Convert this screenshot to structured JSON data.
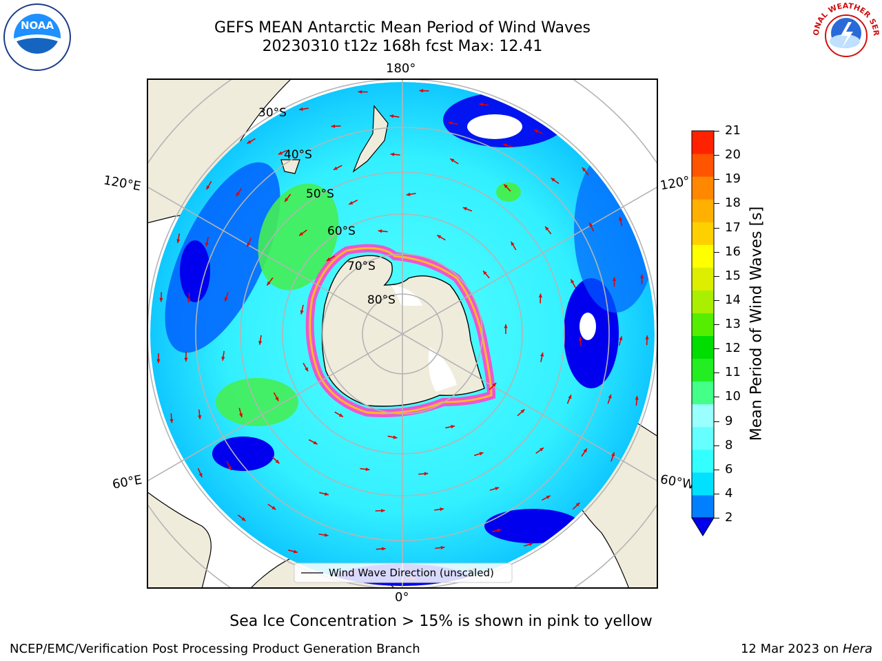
{
  "title": {
    "line1": "GEFS MEAN Antarctic Mean Period of Wind Waves",
    "line2": "20230310 t12z 168h fcst   Max: 12.41"
  },
  "logos": {
    "left": "NOAA",
    "right": "NATIONAL WEATHER SERVICE"
  },
  "map": {
    "longitude_labels": [
      "180°",
      "120°E",
      "120°",
      "60°E",
      "60°W",
      "0°"
    ],
    "latitude_labels": [
      "30°S",
      "40°S",
      "50°S",
      "60°S",
      "70°S",
      "80°S"
    ],
    "legend": "Wind Wave Direction (unscaled)",
    "colors": {
      "land": "#efecdc",
      "coast": "#000000",
      "grid": "#b4b4b4",
      "arrow": "#e00000",
      "sea_ice": "#ff44cc"
    }
  },
  "colorbar": {
    "label": "Mean Period of Wind Waves [s]",
    "ticks": [
      "21",
      "20",
      "19",
      "18",
      "17",
      "16",
      "15",
      "14",
      "13",
      "12",
      "11",
      "10",
      "9",
      "8",
      "6",
      "4",
      "2"
    ],
    "levels": [
      2,
      4,
      6,
      7,
      8,
      9,
      10,
      11,
      12,
      13,
      14,
      15,
      16,
      17,
      18,
      19,
      20,
      21
    ],
    "colors": [
      "#0000ee",
      "#0080ff",
      "#00e0ff",
      "#33ffff",
      "#66ffff",
      "#99ffff",
      "#44ff88",
      "#22ee22",
      "#00dd00",
      "#55ee00",
      "#aaee00",
      "#ddee00",
      "#ffff00",
      "#ffd000",
      "#ffb000",
      "#ff8800",
      "#ff5500",
      "#ff2200",
      "#ff0000"
    ]
  },
  "caption": "Sea Ice Concentration > 15% is shown in pink to yellow",
  "footer": {
    "left": "NCEP/EMC/Verification Post Processing Product Generation Branch",
    "right_date": "12 Mar 2023 on ",
    "right_machine": "Hera"
  }
}
